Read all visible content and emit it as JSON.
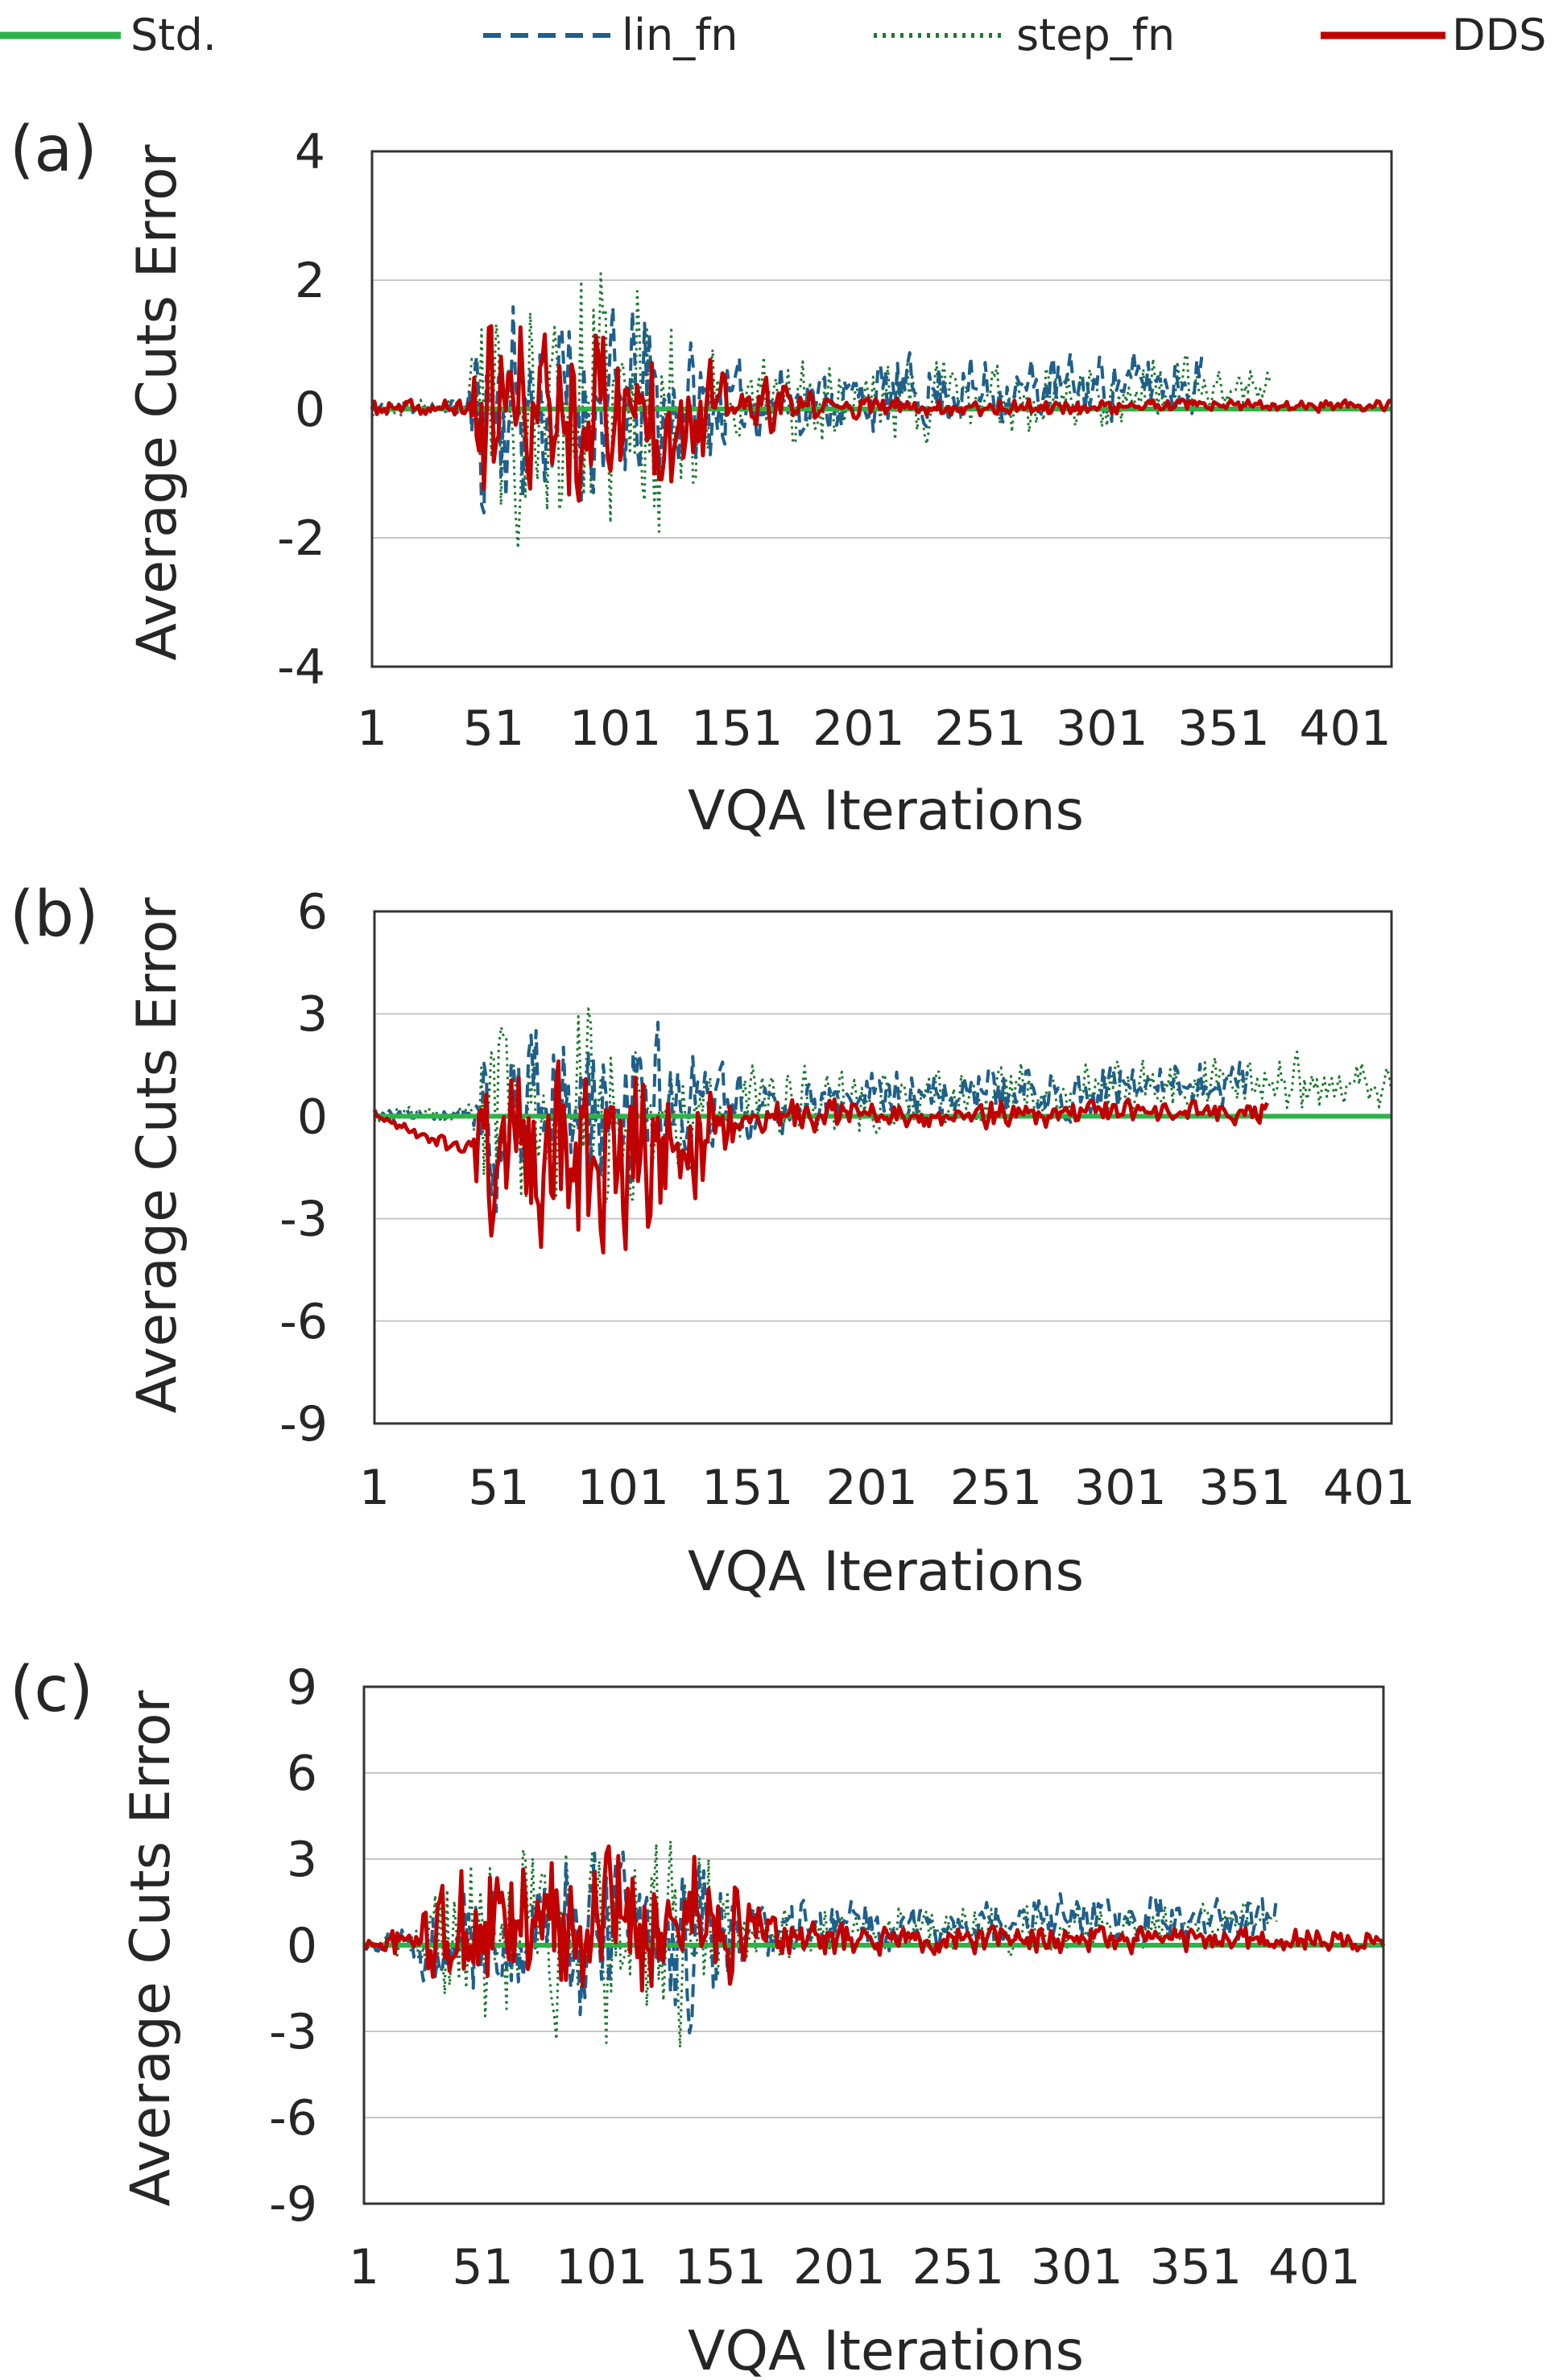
{
  "legend": [
    {
      "name": "Std.",
      "color": "#2db34a",
      "style": "solid"
    },
    {
      "name": "lin_fn",
      "color": "#1f5f8b",
      "style": "dashed"
    },
    {
      "name": "step_fn",
      "color": "#1e7a2e",
      "style": "dotted"
    },
    {
      "name": "DDS",
      "color": "#c00000",
      "style": "solid"
    }
  ],
  "chart_data": [
    {
      "panel": "(a)",
      "type": "line",
      "xlabel": "VQA Iterations",
      "ylabel": "Average Cuts Error",
      "xticks": [
        "1",
        "51",
        "101",
        "151",
        "201",
        "251",
        "301",
        "351",
        "401"
      ],
      "yticks": [
        4,
        2,
        0,
        -2,
        -4
      ],
      "xlim": [
        1,
        420
      ],
      "ylim": [
        -4,
        4
      ],
      "series": [
        {
          "name": "Std.",
          "length": 420,
          "amp": [
            [
              1,
              0.0
            ],
            [
              420,
              0.0
            ]
          ],
          "seed": 1
        },
        {
          "name": "lin_fn",
          "length": 342,
          "amp": [
            [
              1,
              0.12
            ],
            [
              40,
              0.15
            ],
            [
              45,
              1.7
            ],
            [
              120,
              1.4
            ],
            [
              150,
              0.6
            ],
            [
              342,
              0.5
            ]
          ],
          "bias": [
            [
              1,
              0
            ],
            [
              150,
              0.1
            ],
            [
              342,
              0.45
            ]
          ],
          "seed": 11
        },
        {
          "name": "step_fn",
          "length": 370,
          "amp": [
            [
              1,
              0.12
            ],
            [
              40,
              0.15
            ],
            [
              45,
              1.8
            ],
            [
              110,
              2.2
            ],
            [
              150,
              0.7
            ],
            [
              370,
              0.5
            ]
          ],
          "bias": [
            [
              1,
              0
            ],
            [
              150,
              0.1
            ],
            [
              370,
              0.3
            ]
          ],
          "seed": 23
        },
        {
          "name": "DDS",
          "length": 420,
          "amp": [
            [
              1,
              0.12
            ],
            [
              40,
              0.15
            ],
            [
              45,
              1.4
            ],
            [
              120,
              1.3
            ],
            [
              150,
              0.5
            ],
            [
              200,
              0.15
            ],
            [
              420,
              0.08
            ]
          ],
          "bias": [
            [
              1,
              0
            ],
            [
              420,
              0.05
            ]
          ],
          "seed": 37
        }
      ]
    },
    {
      "panel": "(b)",
      "type": "line",
      "xlabel": "VQA Iterations",
      "ylabel": "Average Cuts Error",
      "xticks": [
        "1",
        "51",
        "101",
        "151",
        "201",
        "251",
        "301",
        "351",
        "401"
      ],
      "yticks": [
        6,
        3,
        0,
        -3,
        -6,
        -9
      ],
      "xlim": [
        1,
        410
      ],
      "ylim": [
        -9,
        6
      ],
      "series": [
        {
          "name": "Std.",
          "length": 410,
          "amp": [
            [
              1,
              0.0
            ],
            [
              410,
              0.0
            ]
          ],
          "seed": 2
        },
        {
          "name": "lin_fn",
          "length": 352,
          "amp": [
            [
              1,
              0.2
            ],
            [
              40,
              0.25
            ],
            [
              45,
              2.6
            ],
            [
              110,
              2.4
            ],
            [
              150,
              0.9
            ],
            [
              352,
              0.7
            ]
          ],
          "bias": [
            [
              1,
              0
            ],
            [
              150,
              0.3
            ],
            [
              352,
              1.0
            ]
          ],
          "seed": 41
        },
        {
          "name": "step_fn",
          "length": 410,
          "amp": [
            [
              1,
              0.2
            ],
            [
              40,
              0.25
            ],
            [
              45,
              2.8
            ],
            [
              110,
              2.8
            ],
            [
              150,
              1.0
            ],
            [
              410,
              0.8
            ]
          ],
          "bias": [
            [
              1,
              0
            ],
            [
              150,
              0.4
            ],
            [
              410,
              1.0
            ]
          ],
          "seed": 53
        },
        {
          "name": "DDS",
          "length": 360,
          "amp": [
            [
              1,
              0.2
            ],
            [
              40,
              0.25
            ],
            [
              45,
              2.4
            ],
            [
              115,
              2.6
            ],
            [
              150,
              0.5
            ],
            [
              360,
              0.3
            ]
          ],
          "bias": [
            [
              1,
              0
            ],
            [
              45,
              -1.2
            ],
            [
              115,
              -1.0
            ],
            [
              150,
              0
            ],
            [
              360,
              0.1
            ]
          ],
          "seed": 67
        }
      ]
    },
    {
      "panel": "(c)",
      "type": "line",
      "xlabel": "VQA Iterations",
      "ylabel": "Average Cuts Error",
      "xticks": [
        "1",
        "51",
        "101",
        "151",
        "201",
        "251",
        "301",
        "351",
        "401"
      ],
      "yticks": [
        9,
        6,
        3,
        0,
        -3,
        -6,
        -9
      ],
      "xlim": [
        1,
        430
      ],
      "ylim": [
        -9,
        9
      ],
      "series": [
        {
          "name": "Std.",
          "length": 430,
          "amp": [
            [
              1,
              0.0
            ],
            [
              430,
              0.0
            ]
          ],
          "seed": 3
        },
        {
          "name": "lin_fn",
          "length": 385,
          "amp": [
            [
              1,
              0.3
            ],
            [
              20,
              0.6
            ],
            [
              40,
              2.5
            ],
            [
              140,
              3.2
            ],
            [
              160,
              1.0
            ],
            [
              385,
              0.8
            ]
          ],
          "bias": [
            [
              1,
              0
            ],
            [
              160,
              0.5
            ],
            [
              385,
              1.0
            ]
          ],
          "seed": 71
        },
        {
          "name": "step_fn",
          "length": 385,
          "amp": [
            [
              1,
              0.3
            ],
            [
              20,
              0.6
            ],
            [
              40,
              2.8
            ],
            [
              140,
              3.8
            ],
            [
              160,
              1.0
            ],
            [
              385,
              0.7
            ]
          ],
          "bias": [
            [
              1,
              0
            ],
            [
              160,
              0.4
            ],
            [
              385,
              0.7
            ]
          ],
          "seed": 83
        },
        {
          "name": "DDS",
          "length": 430,
          "amp": [
            [
              1,
              0.3
            ],
            [
              20,
              0.6
            ],
            [
              40,
              2.4
            ],
            [
              150,
              2.6
            ],
            [
              170,
              0.6
            ],
            [
              430,
              0.35
            ]
          ],
          "bias": [
            [
              1,
              0
            ],
            [
              100,
              0.8
            ],
            [
              150,
              1.0
            ],
            [
              175,
              0.2
            ],
            [
              430,
              0.2
            ]
          ],
          "seed": 97
        }
      ]
    }
  ]
}
